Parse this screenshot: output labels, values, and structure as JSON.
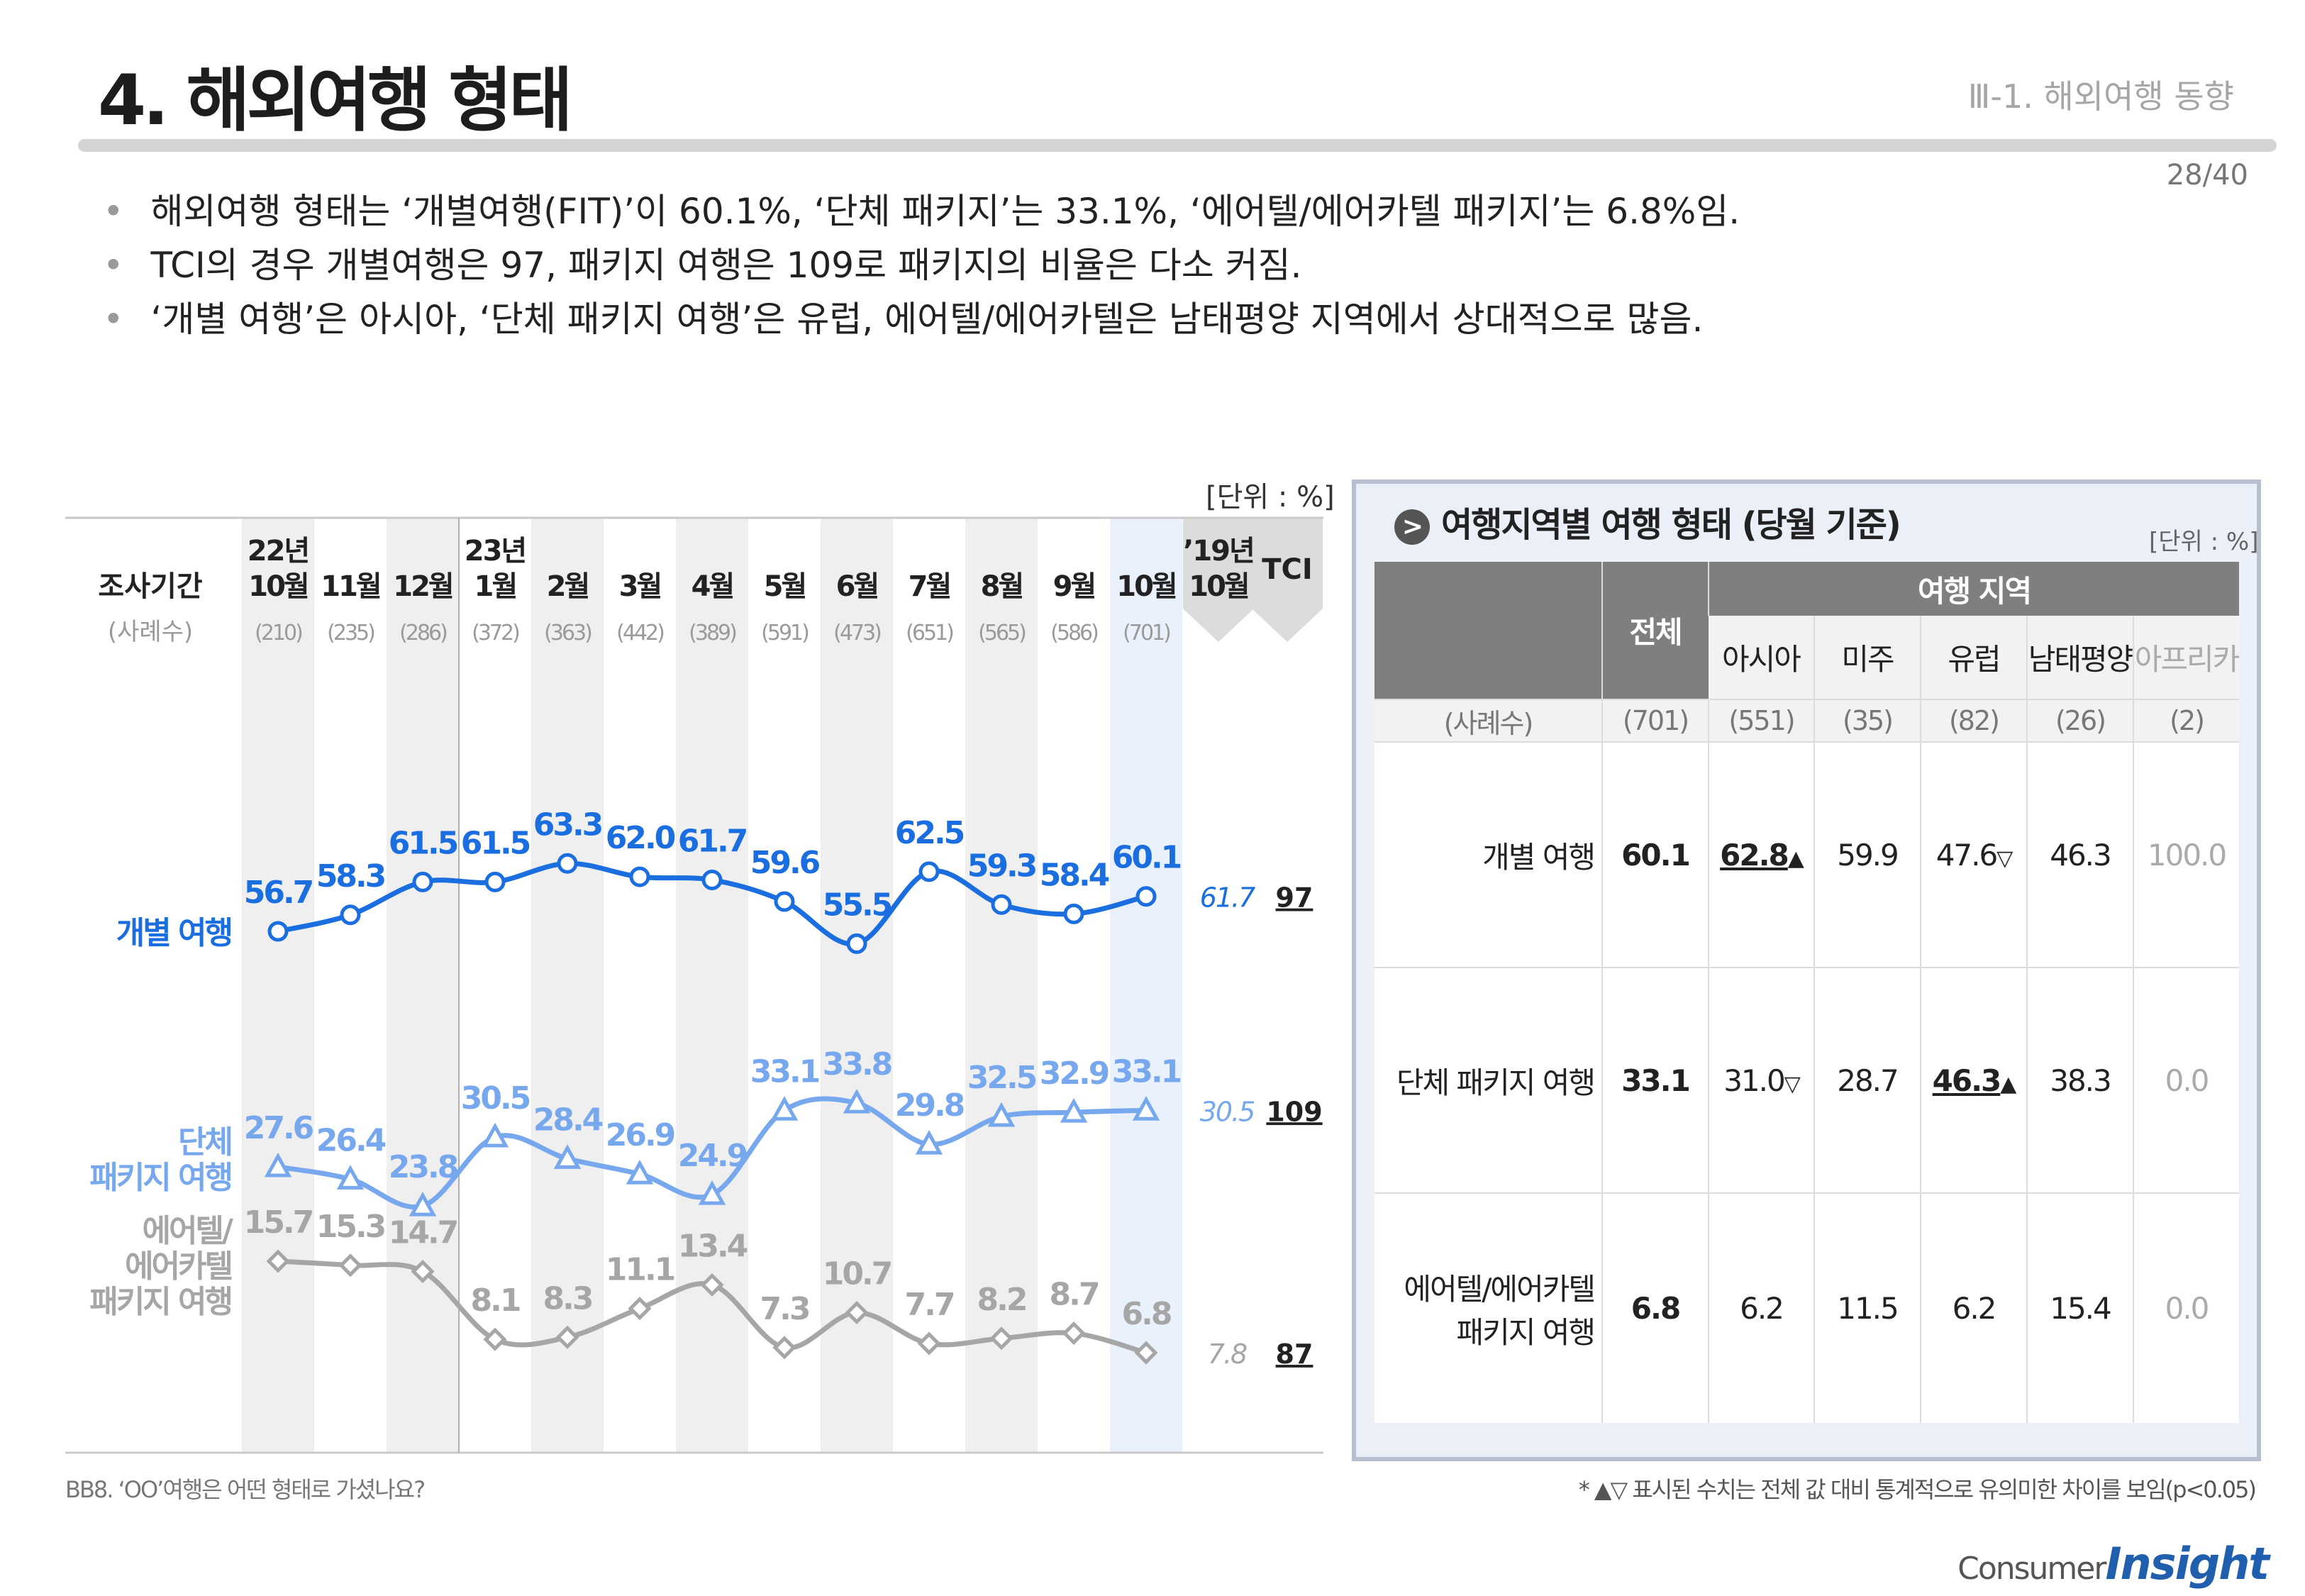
{
  "header": {
    "title": "4. 해외여행 형태",
    "section": "Ⅲ-1. 해외여행 동향",
    "page": "28/40"
  },
  "bullets": [
    "해외여행 형태는 ‘개별여행(FIT)’이 60.1%, ‘단체 패키지’는 33.1%, ‘에어텔/에어카텔 패키지’는 6.8%임.",
    "TCI의 경우 개별여행은 97, 패키지 여행은 109로 패키지의 비율은 다소 커짐.",
    "‘개별 여행’은 아시아, ‘단체 패키지 여행’은 유럽, 에어텔/에어카텔은 남태평양 지역에서 상대적으로 많음."
  ],
  "left_unit": "[단위 : %]",
  "chart_data": {
    "type": "line",
    "period_header": "조사기간",
    "sample_header": "(사례수)",
    "categories": [
      {
        "year": "22년",
        "month": "10월",
        "n": "(210)"
      },
      {
        "year": "",
        "month": "11월",
        "n": "(235)"
      },
      {
        "year": "",
        "month": "12월",
        "n": "(286)"
      },
      {
        "year": "23년",
        "month": "1월",
        "n": "(372)"
      },
      {
        "year": "",
        "month": "2월",
        "n": "(363)"
      },
      {
        "year": "",
        "month": "3월",
        "n": "(442)"
      },
      {
        "year": "",
        "month": "4월",
        "n": "(389)"
      },
      {
        "year": "",
        "month": "5월",
        "n": "(591)"
      },
      {
        "year": "",
        "month": "6월",
        "n": "(473)"
      },
      {
        "year": "",
        "month": "7월",
        "n": "(651)"
      },
      {
        "year": "",
        "month": "8월",
        "n": "(565)"
      },
      {
        "year": "",
        "month": "9월",
        "n": "(586)"
      },
      {
        "year": "",
        "month": "10월",
        "n": "(701)"
      }
    ],
    "compare_col": {
      "year": "’19년",
      "month": "10월"
    },
    "tci_col": "TCI",
    "series": [
      {
        "name": "개별 여행",
        "color": "#1a6ee0",
        "marker": "circle",
        "labels": [
          "56.7",
          "58.3",
          "61.5",
          "61.5",
          "63.3",
          "62.0",
          "61.7",
          "59.6",
          "55.5",
          "62.5",
          "59.3",
          "58.4",
          "60.1"
        ],
        "values": [
          56.7,
          58.3,
          61.5,
          61.5,
          63.3,
          62.0,
          61.7,
          59.6,
          55.5,
          62.5,
          59.3,
          58.4,
          60.1
        ],
        "compare": "61.7",
        "tci": "97"
      },
      {
        "name": "단체 패키지 여행",
        "color": "#77a8ee",
        "marker": "triangle",
        "labels": [
          "27.6",
          "26.4",
          "23.8",
          "30.5",
          "28.4",
          "26.9",
          "24.9",
          "33.1",
          "33.8",
          "29.8",
          "32.5",
          "32.9",
          "33.1"
        ],
        "values": [
          27.6,
          26.4,
          23.8,
          30.5,
          28.4,
          26.9,
          24.9,
          33.1,
          33.8,
          29.8,
          32.5,
          32.9,
          33.1
        ],
        "compare": "30.5",
        "tci": "109"
      },
      {
        "name": "에어텔/에어카텔 패키지 여행",
        "color": "#a6a6a6",
        "marker": "diamond",
        "labels": [
          "15.7",
          "15.3",
          "14.7",
          "8.1",
          "8.3",
          "11.1",
          "13.4",
          "7.3",
          "10.7",
          "7.7",
          "8.2",
          "8.7",
          "6.8"
        ],
        "values": [
          15.7,
          15.3,
          14.7,
          8.1,
          8.3,
          11.1,
          13.4,
          7.3,
          10.7,
          7.7,
          8.2,
          8.7,
          6.8
        ],
        "compare": "7.8",
        "tci": "87"
      }
    ],
    "series_label_lines": [
      [
        "개별 여행"
      ],
      [
        "단체",
        "패키지 여행"
      ],
      [
        "에어텔/",
        "에어카텔",
        "패키지 여행"
      ]
    ]
  },
  "region_panel": {
    "title": "여행지역별 여행 형태 (당월 기준)",
    "unit": "[단위 : %]",
    "total_header": "전체",
    "region_header": "여행 지역",
    "regions": [
      "아시아",
      "미주",
      "유럽",
      "남태평양",
      "아프리카"
    ],
    "sample_label": "(사례수)",
    "samples": [
      "(701)",
      "(551)",
      "(35)",
      "(82)",
      "(26)",
      "(2)"
    ],
    "rows": [
      {
        "label_lines": [
          "개별 여행"
        ],
        "total": "60.1",
        "cells": [
          {
            "v": "62.8",
            "mark": "▲",
            "ul": true
          },
          {
            "v": "59.9"
          },
          {
            "v": "47.6",
            "mark": "▽"
          },
          {
            "v": "46.3"
          },
          {
            "v": "100.0",
            "grey": true
          }
        ]
      },
      {
        "label_lines": [
          "단체 패키지 여행"
        ],
        "total": "33.1",
        "cells": [
          {
            "v": "31.0",
            "mark": "▽"
          },
          {
            "v": "28.7"
          },
          {
            "v": "46.3",
            "mark": "▲",
            "ul": true
          },
          {
            "v": "38.3"
          },
          {
            "v": "0.0",
            "grey": true
          }
        ]
      },
      {
        "label_lines": [
          "에어텔/에어카텔",
          "패키지 여행"
        ],
        "total": "6.8",
        "cells": [
          {
            "v": "6.2"
          },
          {
            "v": "11.5"
          },
          {
            "v": "6.2"
          },
          {
            "v": "15.4"
          },
          {
            "v": "0.0",
            "grey": true
          }
        ]
      }
    ]
  },
  "footer": {
    "question": "BB8. ‘OO’여행은 어떤 형태로 가셨나요?",
    "note": "* ▲▽ 표시된 수치는 전체 값 대비 통계적으로 유의미한 차이를 보임(p<0.05)",
    "logo_prefix": "Consumer",
    "logo_main": "Insight"
  }
}
